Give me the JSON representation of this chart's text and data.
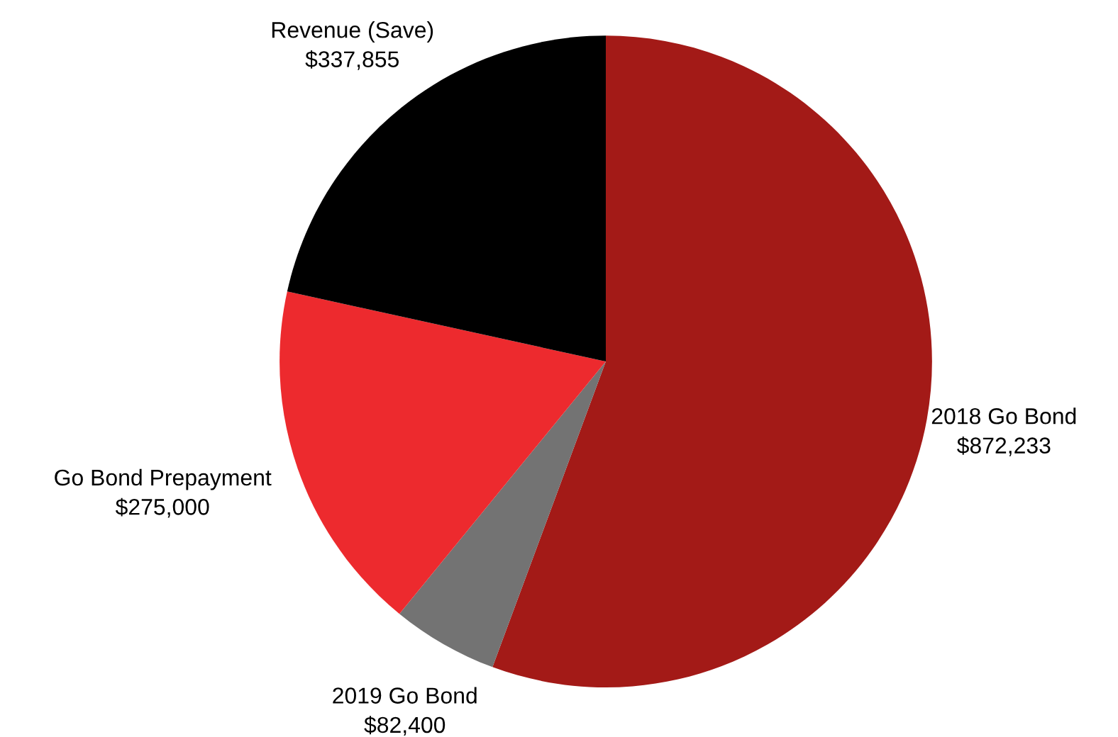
{
  "chart_data": {
    "type": "pie",
    "categories": [
      "2018 Go Bond\n$872,233",
      "2019 Go Bond\n$82,400",
      "Go Bond Prepayment\n$275,000",
      "Revenue (Save)\n$337,855"
    ],
    "values": [
      872233,
      82400,
      275000,
      337855
    ],
    "colors": [
      "#a31a17",
      "#737373",
      "#ed2a2e",
      "#000000"
    ]
  }
}
